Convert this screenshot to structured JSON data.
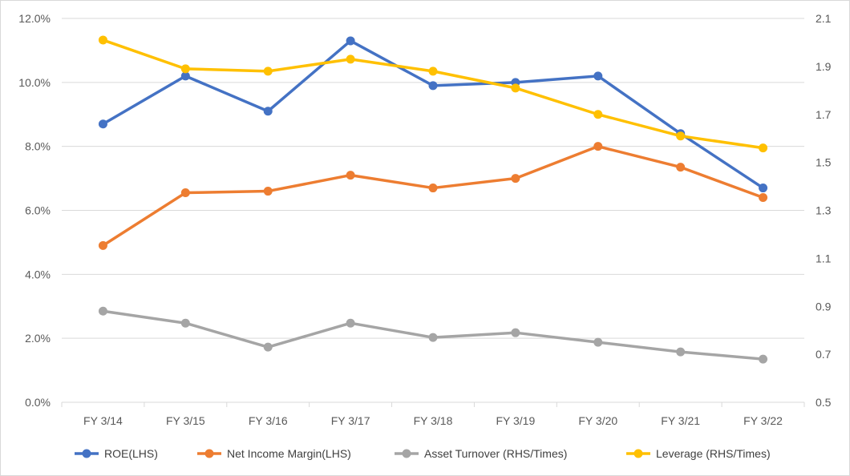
{
  "chart_data": {
    "type": "line",
    "categories": [
      "FY 3/14",
      "FY 3/15",
      "FY 3/16",
      "FY 3/17",
      "FY 3/18",
      "FY 3/19",
      "FY 3/20",
      "FY 3/21",
      "FY 3/22"
    ],
    "left_axis": {
      "ticks": [
        "0.0%",
        "2.0%",
        "4.0%",
        "6.0%",
        "8.0%",
        "10.0%",
        "12.0%"
      ],
      "tick_values": [
        0,
        2,
        4,
        6,
        8,
        10,
        12
      ],
      "ylim": [
        0,
        12
      ]
    },
    "right_axis": {
      "ticks": [
        "0.5",
        "0.7",
        "0.9",
        "1.1",
        "1.3",
        "1.5",
        "1.7",
        "1.9",
        "2.1"
      ],
      "tick_values": [
        0.5,
        0.7,
        0.9,
        1.1,
        1.3,
        1.5,
        1.7,
        1.9,
        2.1
      ],
      "ylim": [
        0.5,
        2.1
      ]
    },
    "grid": "horizontal",
    "legend_position": "bottom",
    "series": [
      {
        "name": "ROE(LHS)",
        "axis": "left",
        "color": "#4472c4",
        "values": [
          8.7,
          10.2,
          9.1,
          11.3,
          9.9,
          10.0,
          10.2,
          8.4,
          6.7
        ]
      },
      {
        "name": "Net Income Margin(LHS)",
        "axis": "left",
        "color": "#ed7d31",
        "values": [
          4.9,
          6.55,
          6.6,
          7.1,
          6.7,
          7.0,
          8.0,
          7.35,
          6.4
        ]
      },
      {
        "name": "Asset Turnover (RHS/Times)",
        "axis": "right",
        "color": "#a5a5a5",
        "values": [
          0.88,
          0.83,
          0.73,
          0.83,
          0.77,
          0.79,
          0.75,
          0.71,
          0.68
        ]
      },
      {
        "name": "Leverage (RHS/Times)",
        "axis": "right",
        "color": "#ffc000",
        "values": [
          2.01,
          1.89,
          1.88,
          1.93,
          1.88,
          1.81,
          1.7,
          1.61,
          1.56
        ]
      }
    ]
  }
}
